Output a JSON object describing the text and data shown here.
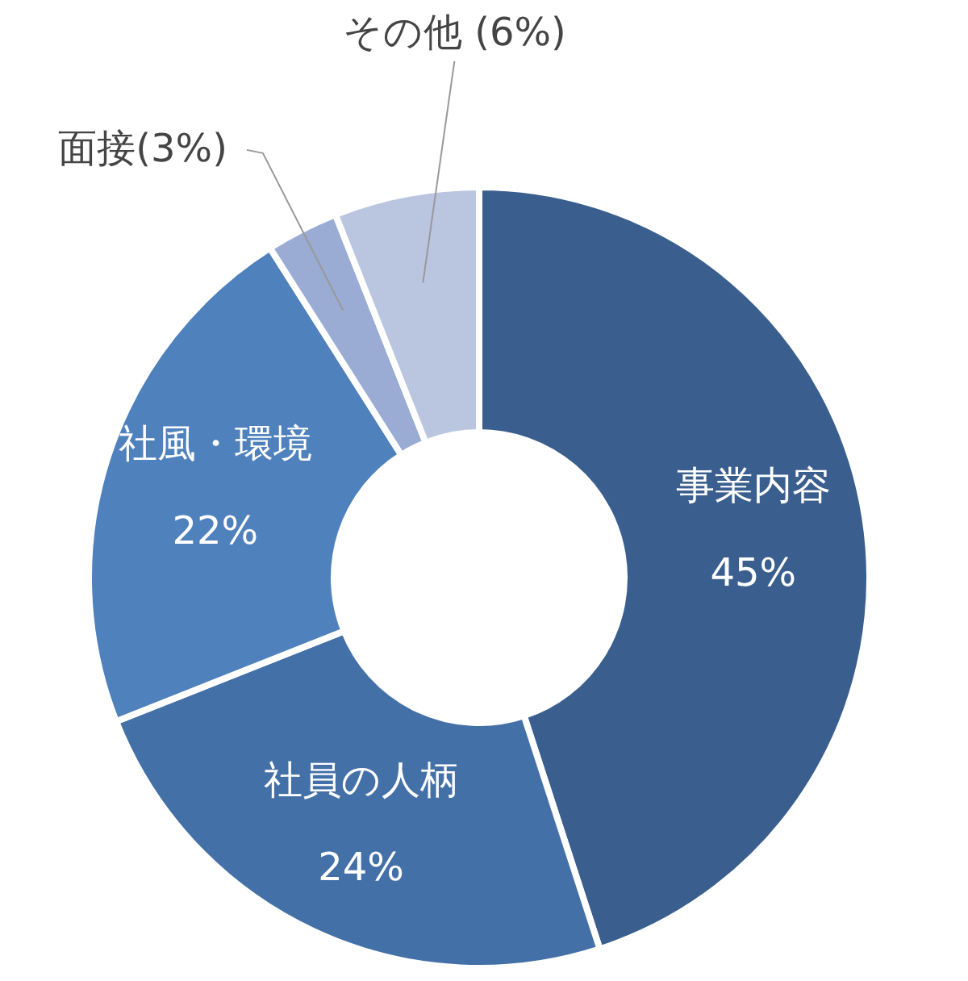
{
  "chart_data": {
    "type": "donut",
    "categories": [
      "事業内容",
      "社員の人柄",
      "社風・環境",
      "面接",
      "その他"
    ],
    "values": [
      45,
      24,
      22,
      3,
      6
    ],
    "colors": [
      "#3a5f8e",
      "#4470a8",
      "#4f81bd",
      "#9aacd4",
      "#bac6e0"
    ],
    "value_labels": [
      "45%",
      "24%",
      "22%",
      "(3%)",
      " (6%)"
    ],
    "legend": false
  }
}
